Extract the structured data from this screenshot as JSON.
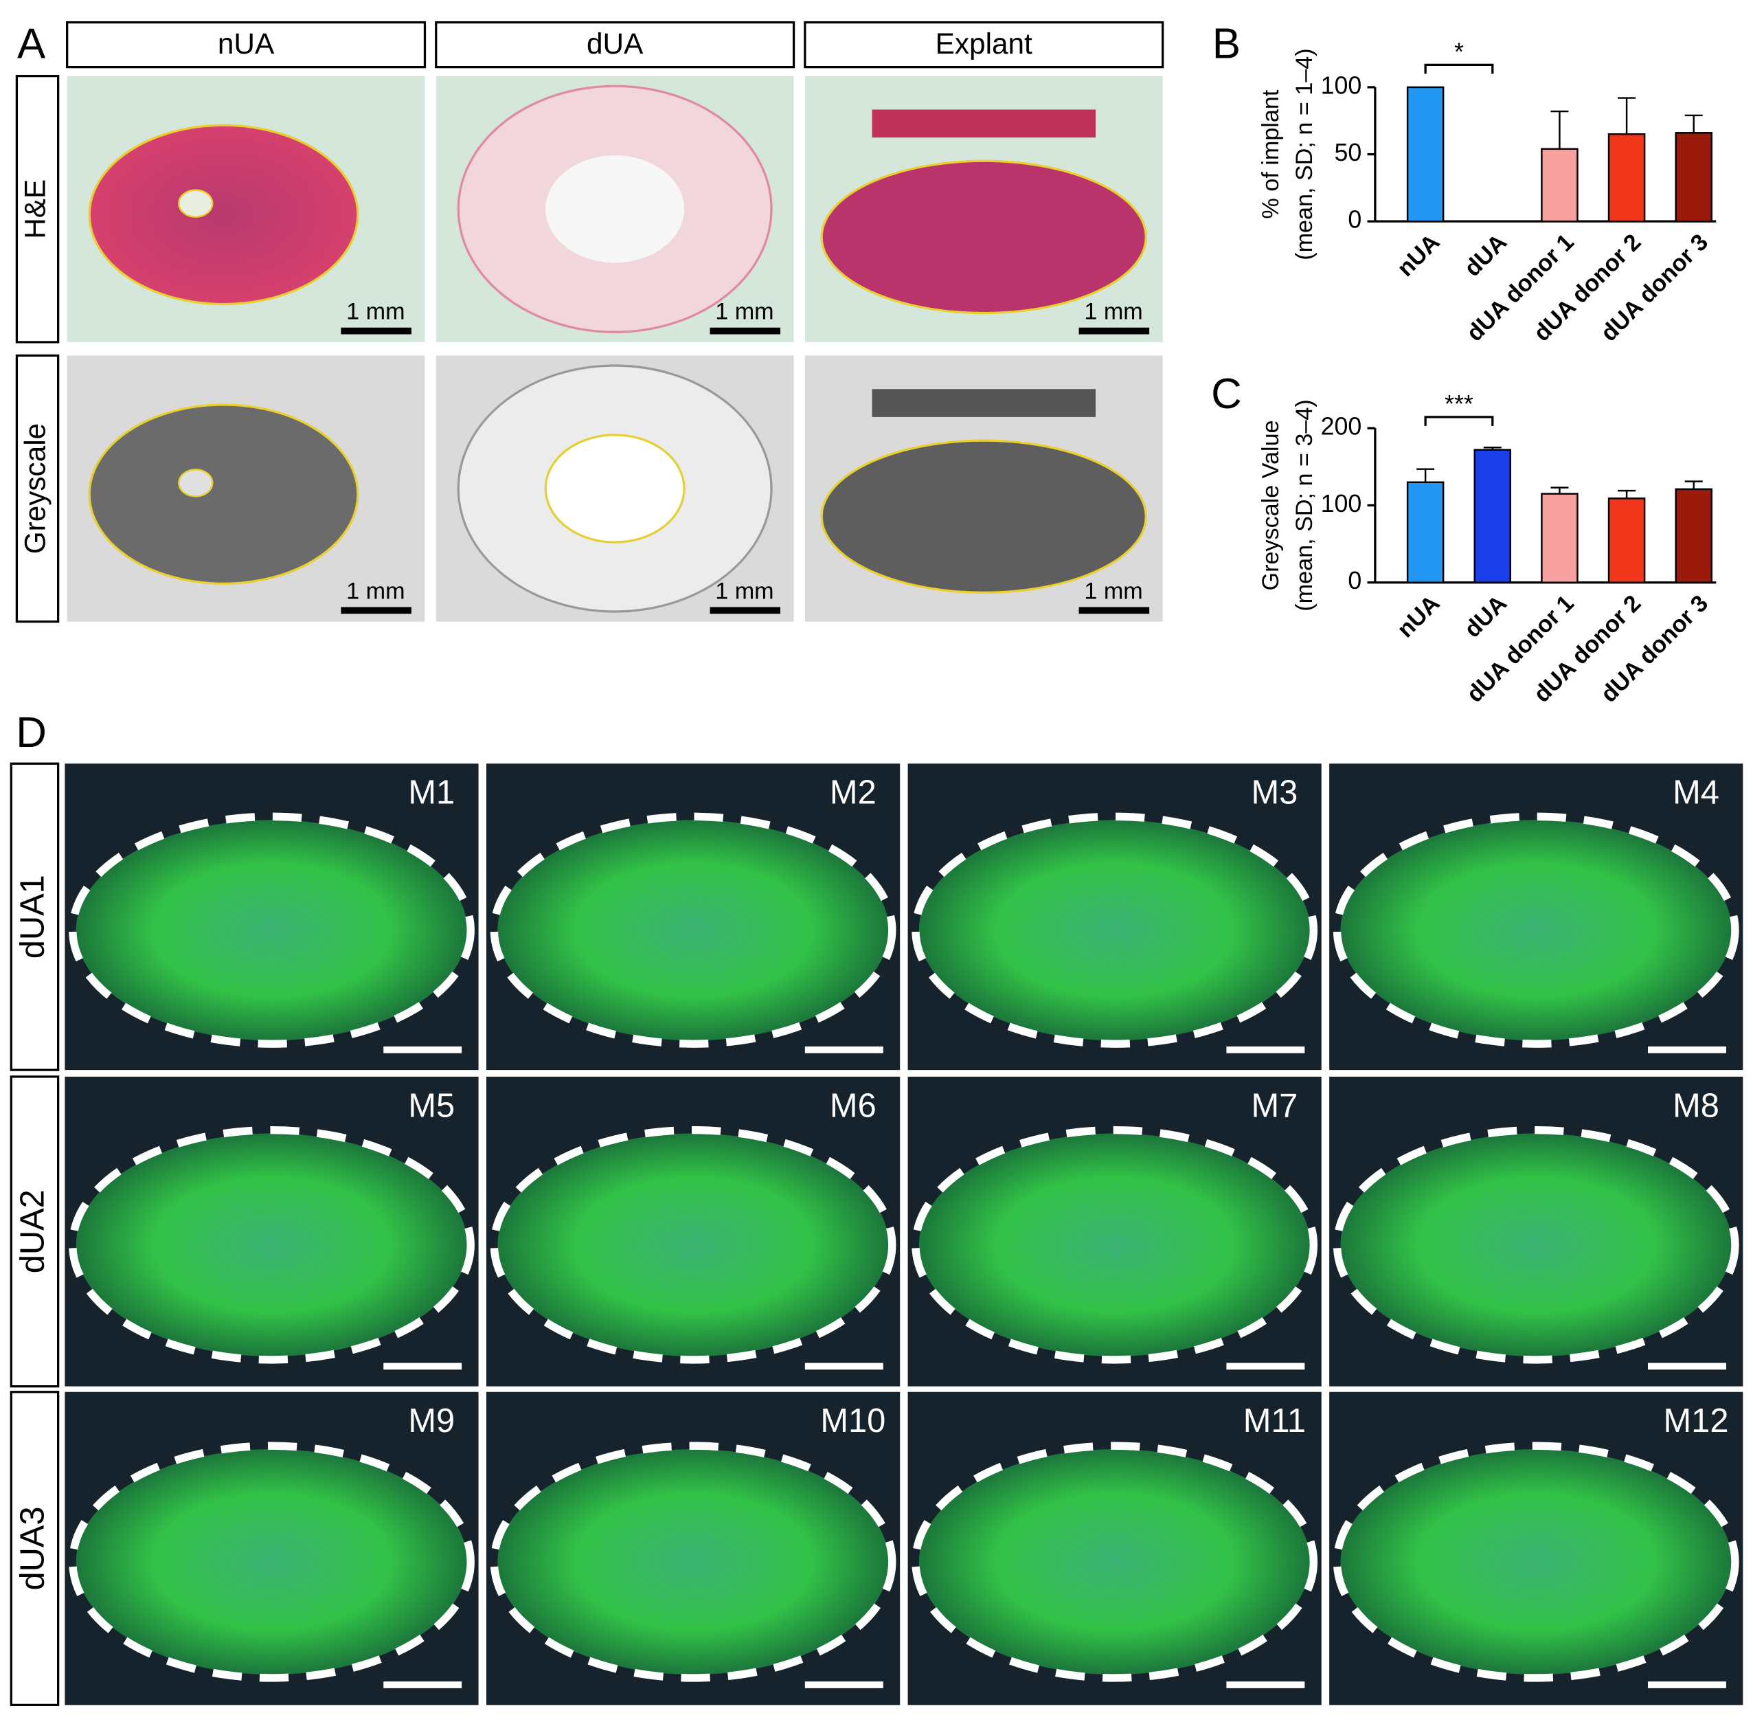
{
  "panel_labels": [
    "A",
    "B",
    "C",
    "D"
  ],
  "panel_a": {
    "columns": [
      "nUA",
      "dUA",
      "Explant"
    ],
    "rows": [
      "H&E",
      "Greyscale"
    ],
    "scale_bar": "1 mm"
  },
  "panel_d": {
    "rows": [
      "dUA1",
      "dUA2",
      "dUA3"
    ],
    "images": [
      "M1",
      "M2",
      "M3",
      "M4",
      "M5",
      "M6",
      "M7",
      "M8",
      "M9",
      "M10",
      "M11",
      "M12"
    ]
  },
  "chart_data": [
    {
      "type": "bar",
      "y_label": [
        "% of implant",
        "(mean, SD; n = 1–4)"
      ],
      "categories": [
        "nUA",
        "dUA",
        "dUA donor 1",
        "dUA donor 2",
        "dUA donor 3"
      ],
      "values": [
        100,
        0,
        54,
        65,
        66
      ],
      "errors": [
        0,
        0,
        28,
        27,
        13
      ],
      "colors": [
        "#2196f3",
        "#1a3ee8",
        "#f7a1a1",
        "#f2381c",
        "#9a1b0c"
      ],
      "ylim": [
        0,
        100
      ],
      "yticks": [
        0,
        50,
        100
      ],
      "significance": "*"
    },
    {
      "type": "bar",
      "y_label": [
        "Greyscale Value",
        "(mean, SD; n = 3–4)"
      ],
      "categories": [
        "nUA",
        "dUA",
        "dUA donor 1",
        "dUA donor 2",
        "dUA donor 3"
      ],
      "values": [
        130,
        172,
        115,
        109,
        121
      ],
      "errors": [
        17,
        3,
        8,
        10,
        10
      ],
      "colors": [
        "#2196f3",
        "#1a3ee8",
        "#f7a1a1",
        "#f2381c",
        "#9a1b0c"
      ],
      "ylim": [
        0,
        200
      ],
      "yticks": [
        0,
        100,
        200
      ],
      "significance": "***"
    }
  ]
}
